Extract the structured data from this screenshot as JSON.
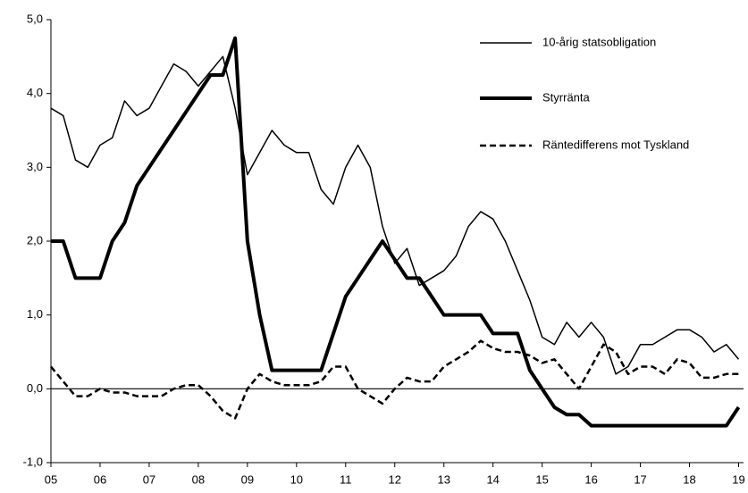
{
  "chart_data": {
    "type": "line",
    "x": [
      2005,
      2005.25,
      2005.5,
      2005.75,
      2006,
      2006.25,
      2006.5,
      2006.75,
      2007,
      2007.25,
      2007.5,
      2007.75,
      2008,
      2008.25,
      2008.5,
      2008.75,
      2009,
      2009.25,
      2009.5,
      2009.75,
      2010,
      2010.25,
      2010.5,
      2010.75,
      2011,
      2011.25,
      2011.5,
      2011.75,
      2012,
      2012.25,
      2012.5,
      2012.75,
      2013,
      2013.25,
      2013.5,
      2013.75,
      2014,
      2014.25,
      2014.5,
      2014.75,
      2015,
      2015.25,
      2015.5,
      2015.75,
      2016,
      2016.25,
      2016.5,
      2016.75,
      2017,
      2017.25,
      2017.5,
      2017.75,
      2018,
      2018.25,
      2018.5,
      2018.75,
      2019
    ],
    "series": [
      {
        "name": "10-årig statsobligation",
        "color": "#000000",
        "line_width": 1.5,
        "dash": "none",
        "values": [
          3.8,
          3.7,
          3.1,
          3.0,
          3.3,
          3.4,
          3.9,
          3.7,
          3.8,
          4.1,
          4.4,
          4.3,
          4.1,
          4.3,
          4.5,
          3.8,
          2.9,
          3.2,
          3.5,
          3.3,
          3.2,
          3.2,
          2.7,
          2.5,
          3.0,
          3.3,
          3.0,
          2.2,
          1.7,
          1.9,
          1.4,
          1.5,
          1.6,
          1.8,
          2.2,
          2.4,
          2.3,
          2.0,
          1.6,
          1.2,
          0.7,
          0.6,
          0.9,
          0.7,
          0.9,
          0.7,
          0.2,
          0.3,
          0.6,
          0.6,
          0.7,
          0.8,
          0.8,
          0.7,
          0.5,
          0.6,
          0.4
        ]
      },
      {
        "name": "Styrränta",
        "color": "#000000",
        "line_width": 4,
        "dash": "none",
        "values": [
          2.0,
          2.0,
          1.5,
          1.5,
          1.5,
          2.0,
          2.25,
          2.75,
          3.0,
          3.25,
          3.5,
          3.75,
          4.0,
          4.25,
          4.25,
          4.75,
          2.0,
          1.0,
          0.25,
          0.25,
          0.25,
          0.25,
          0.25,
          0.75,
          1.25,
          1.5,
          1.75,
          2.0,
          1.75,
          1.5,
          1.5,
          1.25,
          1.0,
          1.0,
          1.0,
          1.0,
          0.75,
          0.75,
          0.75,
          0.25,
          0.0,
          -0.25,
          -0.35,
          -0.35,
          -0.5,
          -0.5,
          -0.5,
          -0.5,
          -0.5,
          -0.5,
          -0.5,
          -0.5,
          -0.5,
          -0.5,
          -0.5,
          -0.5,
          -0.25
        ]
      },
      {
        "name": "Räntedifferens mot Tyskland",
        "color": "#000000",
        "line_width": 2.5,
        "dash": "7 4",
        "values": [
          0.3,
          0.1,
          -0.1,
          -0.1,
          0.0,
          -0.05,
          -0.05,
          -0.1,
          -0.1,
          -0.1,
          0.0,
          0.05,
          0.05,
          -0.1,
          -0.3,
          -0.4,
          0.0,
          0.2,
          0.1,
          0.05,
          0.05,
          0.05,
          0.1,
          0.3,
          0.3,
          0.0,
          -0.1,
          -0.2,
          0.0,
          0.15,
          0.1,
          0.1,
          0.3,
          0.4,
          0.5,
          0.65,
          0.55,
          0.5,
          0.5,
          0.45,
          0.35,
          0.4,
          0.2,
          0.0,
          0.3,
          0.6,
          0.5,
          0.2,
          0.3,
          0.3,
          0.2,
          0.4,
          0.35,
          0.15,
          0.15,
          0.2,
          0.2
        ]
      }
    ],
    "xlim": [
      2005,
      2019.1
    ],
    "xticks": [
      {
        "value": 2005,
        "label": "05"
      },
      {
        "value": 2006,
        "label": "06"
      },
      {
        "value": 2007,
        "label": "07"
      },
      {
        "value": 2008,
        "label": "08"
      },
      {
        "value": 2009,
        "label": "09"
      },
      {
        "value": 2010,
        "label": "10"
      },
      {
        "value": 2011,
        "label": "11"
      },
      {
        "value": 2012,
        "label": "12"
      },
      {
        "value": 2013,
        "label": "13"
      },
      {
        "value": 2014,
        "label": "14"
      },
      {
        "value": 2015,
        "label": "15"
      },
      {
        "value": 2016,
        "label": "16"
      },
      {
        "value": 2017,
        "label": "17"
      },
      {
        "value": 2018,
        "label": "18"
      },
      {
        "value": 2019,
        "label": "19"
      }
    ],
    "ylim": [
      -1,
      5
    ],
    "yticks": [
      {
        "value": -1,
        "label": "-1,0"
      },
      {
        "value": 0,
        "label": "0,0"
      },
      {
        "value": 1,
        "label": "1,0"
      },
      {
        "value": 2,
        "label": "2,0"
      },
      {
        "value": 3,
        "label": "3,0"
      },
      {
        "value": 4,
        "label": "4,0"
      },
      {
        "value": 5,
        "label": "5,0"
      }
    ],
    "grid": false,
    "legend": "upper right"
  }
}
